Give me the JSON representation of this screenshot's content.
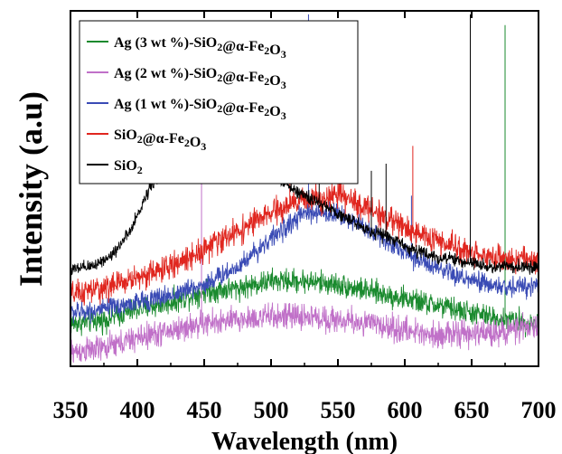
{
  "chart_data": {
    "type": "line",
    "xlabel": "Wavelength (nm)",
    "ylabel": "Intensity (a.u)",
    "xlim": [
      350,
      700
    ],
    "ylim": [
      0,
      100
    ],
    "xticks": [
      "350",
      "400",
      "450",
      "500",
      "550",
      "600",
      "650",
      "700"
    ],
    "y_ticklabels": false,
    "grid": false,
    "legend_position": "top-left",
    "series": [
      {
        "name": "Ag (3 wt %)-SiO2@α-Fe2O3",
        "label_parts": [
          [
            "Ag (3 wt %)-SiO",
            "n"
          ],
          [
            "2",
            "sub"
          ],
          [
            "@α-Fe",
            "n"
          ],
          [
            "2",
            "sub"
          ],
          [
            "O",
            "n"
          ],
          [
            "3",
            "sub"
          ]
        ],
        "color": "#1a8a2e",
        "x": [
          350,
          375,
          400,
          425,
          450,
          475,
          500,
          525,
          550,
          575,
          600,
          625,
          650,
          675,
          700
        ],
        "y": [
          12,
          13,
          16,
          18,
          21,
          22,
          24,
          24,
          23,
          21,
          19,
          17,
          15,
          13,
          12
        ],
        "noise": 2.5,
        "spikes": [
          [
            551,
            22
          ],
          [
            675,
            96
          ]
        ]
      },
      {
        "name": "Ag (2 wt %)-SiO2@α-Fe2O3",
        "label_parts": [
          [
            "Ag (2 wt %)-SiO",
            "n"
          ],
          [
            "2",
            "sub"
          ],
          [
            "@α-Fe",
            "n"
          ],
          [
            "2",
            "sub"
          ],
          [
            "O",
            "n"
          ],
          [
            "3",
            "sub"
          ]
        ],
        "color": "#c070c8",
        "x": [
          350,
          375,
          400,
          425,
          450,
          475,
          500,
          525,
          550,
          575,
          600,
          625,
          650,
          675,
          700
        ],
        "y": [
          4,
          5,
          8,
          10,
          12,
          13,
          14,
          14,
          13,
          12,
          10,
          9,
          9,
          10,
          11
        ],
        "noise": 2.8,
        "spikes": [
          [
            448,
            52
          ]
        ]
      },
      {
        "name": "Ag (1 wt %)-SiO2@α-Fe2O3",
        "label_parts": [
          [
            "Ag ",
            "n"
          ],
          [
            "(",
            "n"
          ],
          [
            "1 wt %)-SiO",
            "n"
          ],
          [
            "2",
            "sub"
          ],
          [
            "@α-Fe",
            "n"
          ],
          [
            "2",
            "sub"
          ],
          [
            "O",
            "n"
          ],
          [
            "3",
            "sub"
          ]
        ],
        "color": "#3a4bb5",
        "x": [
          350,
          375,
          400,
          425,
          450,
          475,
          500,
          525,
          550,
          575,
          600,
          625,
          650,
          675,
          700
        ],
        "y": [
          15,
          16,
          18,
          20,
          23,
          28,
          36,
          43,
          43,
          38,
          32,
          27,
          24,
          22,
          23
        ],
        "noise": 2.2,
        "spikes": [
          [
            528,
            99
          ],
          [
            605,
            48
          ]
        ]
      },
      {
        "name": "SiO2@α-Fe2O3",
        "label_parts": [
          [
            "SiO",
            "n"
          ],
          [
            "2",
            "sub"
          ],
          [
            "@α-Fe",
            "n"
          ],
          [
            "2",
            "sub"
          ],
          [
            "O",
            "n"
          ],
          [
            "3",
            "sub"
          ]
        ],
        "color": "#e0261f",
        "x": [
          350,
          375,
          400,
          425,
          450,
          475,
          500,
          525,
          550,
          575,
          600,
          625,
          650,
          675,
          700
        ],
        "y": [
          20,
          22,
          25,
          28,
          33,
          38,
          43,
          47,
          48,
          44,
          39,
          35,
          32,
          30,
          30
        ],
        "noise": 2.8,
        "spikes": [
          [
            514,
            58
          ],
          [
            551,
            63
          ],
          [
            606,
            62
          ]
        ]
      },
      {
        "name": "SiO2",
        "label_parts": [
          [
            "SiO",
            "n"
          ],
          [
            "2",
            "sub"
          ]
        ],
        "color": "#000000",
        "x": [
          350,
          365,
          380,
          395,
          410,
          425,
          440,
          455,
          470,
          485,
          500,
          515,
          530,
          545,
          560,
          575,
          590,
          605,
          620,
          635,
          650,
          665,
          680,
          700
        ],
        "y": [
          27,
          28,
          31,
          38,
          51,
          58,
          60,
          62,
          62,
          60,
          55,
          50,
          47,
          44,
          41,
          38,
          36,
          33,
          31,
          30,
          29,
          28,
          28,
          28
        ],
        "noise": 1.4,
        "spikes": [
          [
            440,
            65
          ],
          [
            536,
            75
          ],
          [
            575,
            55
          ],
          [
            586,
            57
          ],
          [
            649,
            99
          ]
        ]
      }
    ]
  }
}
